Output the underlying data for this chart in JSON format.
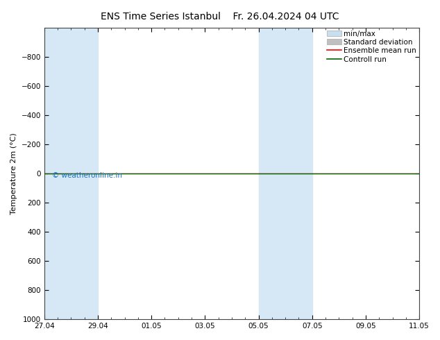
{
  "title": "ENS Time Series Istanbul",
  "title2": "Fr. 26.04.2024 04 UTC",
  "ylabel": "Temperature 2m (°C)",
  "ylim_bottom": 1000,
  "ylim_top": -1000,
  "yticks": [
    -800,
    -600,
    -400,
    -200,
    0,
    200,
    400,
    600,
    800,
    1000
  ],
  "xtick_labels": [
    "27.04",
    "29.04",
    "01.05",
    "03.05",
    "05.05",
    "07.05",
    "09.05",
    "11.05"
  ],
  "xtick_positions": [
    0,
    2,
    4,
    6,
    8,
    10,
    12,
    14
  ],
  "x_min": 0,
  "x_max": 14,
  "shading_bands": [
    [
      0,
      1
    ],
    [
      1,
      2
    ],
    [
      8,
      9
    ],
    [
      9,
      10
    ],
    [
      14,
      15
    ]
  ],
  "shading_color": "#d6e8f5",
  "ensemble_mean_y": 0.0,
  "control_run_y": 0.0,
  "ensemble_mean_color": "#ff0000",
  "control_run_color": "#006400",
  "watermark": "© weatheronline.in",
  "watermark_color": "#1a6fba",
  "background_color": "#ffffff",
  "legend_minmax_color": "#c8dff0",
  "legend_stddev_color": "#c0c0c0",
  "title_fontsize": 10,
  "axis_fontsize": 8,
  "tick_fontsize": 7.5,
  "legend_fontsize": 7.5
}
